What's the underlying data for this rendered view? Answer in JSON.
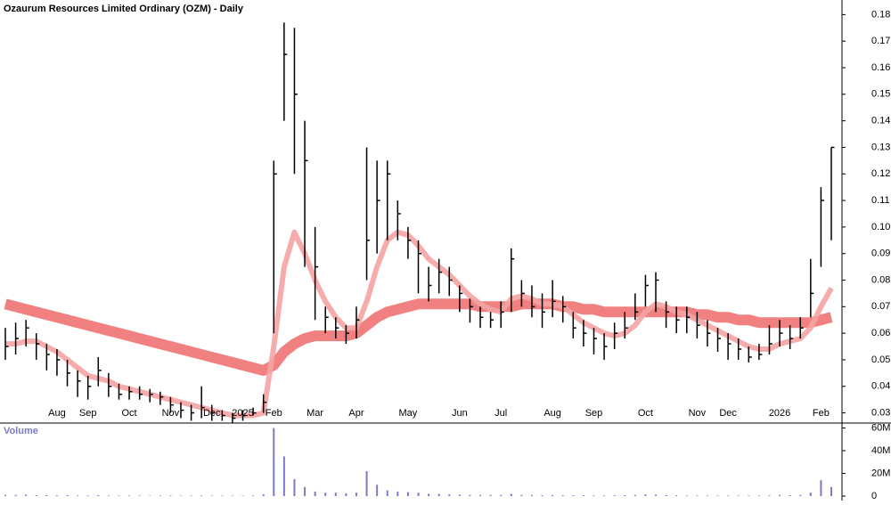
{
  "chart_data": [
    {
      "type": "candlestick",
      "title": "Ozaurum Resources Limited Ordinary (OZM) - Daily",
      "categories": [
        null,
        null,
        null,
        null,
        null,
        "Aug",
        null,
        null,
        "Sep",
        null,
        null,
        null,
        "Oct",
        null,
        null,
        null,
        "Nov",
        null,
        null,
        null,
        "Dec",
        null,
        null,
        "2025",
        null,
        null,
        "Feb",
        null,
        null,
        null,
        "Mar",
        null,
        null,
        null,
        "Apr",
        null,
        null,
        null,
        null,
        "May",
        null,
        null,
        null,
        null,
        "Jun",
        null,
        null,
        null,
        "Jul",
        null,
        null,
        null,
        null,
        "Aug",
        null,
        null,
        null,
        "Sep",
        null,
        null,
        null,
        null,
        "Oct",
        null,
        null,
        null,
        null,
        "Nov",
        null,
        null,
        "Dec",
        null,
        null,
        null,
        null,
        "2026",
        null,
        null,
        null,
        "Feb",
        null
      ],
      "high": [
        0.062,
        0.064,
        0.065,
        0.06,
        0.056,
        0.054,
        0.05,
        0.046,
        0.044,
        0.051,
        0.045,
        0.041,
        0.04,
        0.04,
        0.039,
        0.038,
        0.036,
        0.034,
        0.033,
        0.04,
        0.033,
        0.031,
        0.03,
        0.031,
        0.032,
        0.037,
        0.125,
        0.177,
        0.175,
        0.14,
        0.1,
        0.07,
        0.066,
        0.063,
        0.07,
        0.13,
        0.125,
        0.125,
        0.11,
        0.1,
        0.095,
        0.085,
        0.088,
        0.085,
        0.078,
        0.073,
        0.07,
        0.068,
        0.072,
        0.092,
        0.08,
        0.078,
        0.075,
        0.08,
        0.074,
        0.068,
        0.065,
        0.062,
        0.06,
        0.064,
        0.068,
        0.075,
        0.082,
        0.083,
        0.072,
        0.07,
        0.07,
        0.068,
        0.065,
        0.062,
        0.06,
        0.058,
        0.055,
        0.056,
        0.063,
        0.065,
        0.063,
        0.066,
        0.088,
        0.115,
        0.13
      ],
      "low": [
        0.05,
        0.052,
        0.055,
        0.05,
        0.046,
        0.044,
        0.04,
        0.036,
        0.035,
        0.04,
        0.036,
        0.035,
        0.035,
        0.035,
        0.034,
        0.033,
        0.03,
        0.028,
        0.027,
        0.028,
        0.027,
        0.027,
        0.026,
        0.027,
        0.029,
        0.03,
        0.06,
        0.14,
        0.12,
        0.085,
        0.065,
        0.06,
        0.058,
        0.056,
        0.058,
        0.08,
        0.09,
        0.095,
        0.095,
        0.088,
        0.075,
        0.072,
        0.075,
        0.074,
        0.068,
        0.064,
        0.062,
        0.062,
        0.062,
        0.068,
        0.07,
        0.066,
        0.062,
        0.066,
        0.064,
        0.058,
        0.055,
        0.052,
        0.05,
        0.054,
        0.058,
        0.065,
        0.07,
        0.068,
        0.062,
        0.06,
        0.06,
        0.058,
        0.055,
        0.053,
        0.05,
        0.05,
        0.049,
        0.05,
        0.052,
        0.055,
        0.054,
        0.058,
        0.066,
        0.085,
        0.095
      ],
      "close": [
        0.055,
        0.058,
        0.062,
        0.056,
        0.052,
        0.05,
        0.045,
        0.042,
        0.04,
        0.046,
        0.04,
        0.037,
        0.038,
        0.037,
        0.037,
        0.036,
        0.033,
        0.031,
        0.03,
        0.032,
        0.03,
        0.029,
        0.028,
        0.029,
        0.03,
        0.034,
        0.12,
        0.165,
        0.15,
        0.125,
        0.085,
        0.066,
        0.062,
        0.06,
        0.065,
        0.095,
        0.11,
        0.12,
        0.105,
        0.095,
        0.09,
        0.078,
        0.083,
        0.08,
        0.075,
        0.07,
        0.066,
        0.065,
        0.068,
        0.088,
        0.075,
        0.07,
        0.068,
        0.072,
        0.07,
        0.062,
        0.06,
        0.058,
        0.055,
        0.06,
        0.062,
        0.068,
        0.078,
        0.08,
        0.068,
        0.065,
        0.066,
        0.063,
        0.06,
        0.058,
        0.056,
        0.054,
        0.051,
        0.052,
        0.056,
        0.06,
        0.058,
        0.062,
        0.075,
        0.11,
        0.13
      ],
      "ma_short": {
        "color": "#f5a3a3",
        "values": [
          0.056,
          0.056,
          0.057,
          0.057,
          0.055,
          0.053,
          0.05,
          0.047,
          0.044,
          0.043,
          0.042,
          0.04,
          0.039,
          0.038,
          0.037,
          0.036,
          0.035,
          0.034,
          0.033,
          0.032,
          0.031,
          0.03,
          0.029,
          0.029,
          0.029,
          0.03,
          0.055,
          0.085,
          0.098,
          0.09,
          0.08,
          0.072,
          0.066,
          0.062,
          0.062,
          0.072,
          0.085,
          0.095,
          0.098,
          0.097,
          0.093,
          0.088,
          0.085,
          0.082,
          0.078,
          0.074,
          0.071,
          0.069,
          0.068,
          0.073,
          0.074,
          0.073,
          0.071,
          0.071,
          0.07,
          0.067,
          0.064,
          0.062,
          0.06,
          0.059,
          0.06,
          0.063,
          0.068,
          0.071,
          0.07,
          0.068,
          0.067,
          0.065,
          0.063,
          0.061,
          0.059,
          0.057,
          0.055,
          0.054,
          0.054,
          0.056,
          0.057,
          0.058,
          0.062,
          0.07,
          0.077
        ]
      },
      "ma_long": {
        "color": "#f07272",
        "values": [
          0.071,
          0.07,
          0.069,
          0.068,
          0.067,
          0.066,
          0.065,
          0.064,
          0.063,
          0.062,
          0.061,
          0.06,
          0.059,
          0.058,
          0.057,
          0.056,
          0.055,
          0.054,
          0.053,
          0.052,
          0.051,
          0.05,
          0.049,
          0.048,
          0.047,
          0.046,
          0.048,
          0.053,
          0.056,
          0.058,
          0.059,
          0.059,
          0.059,
          0.059,
          0.06,
          0.063,
          0.066,
          0.068,
          0.069,
          0.07,
          0.071,
          0.071,
          0.071,
          0.071,
          0.071,
          0.071,
          0.07,
          0.07,
          0.07,
          0.07,
          0.071,
          0.071,
          0.071,
          0.071,
          0.07,
          0.07,
          0.069,
          0.069,
          0.068,
          0.068,
          0.068,
          0.068,
          0.068,
          0.068,
          0.068,
          0.068,
          0.068,
          0.067,
          0.067,
          0.066,
          0.066,
          0.065,
          0.065,
          0.064,
          0.064,
          0.064,
          0.064,
          0.064,
          0.064,
          0.065,
          0.066
        ]
      },
      "color": "#000000",
      "ylim": [
        0.0265,
        0.1855
      ],
      "yticks": [
        0.03,
        0.04,
        0.05,
        0.06,
        0.07,
        0.08,
        0.09,
        {
          "value": 0.1,
          "label": "0.10"
        },
        0.11,
        0.12,
        0.13,
        0.14,
        0.15,
        0.16,
        0.17,
        0.18
      ]
    },
    {
      "type": "bar",
      "title": "Volume",
      "values": [
        1,
        1,
        1.2,
        0.8,
        0.8,
        0.7,
        0.9,
        0.6,
        0.6,
        0.8,
        0.5,
        0.5,
        0.5,
        0.5,
        0.4,
        0.5,
        0.5,
        0.4,
        0.4,
        0.6,
        0.4,
        0.4,
        0.4,
        0.4,
        0.5,
        1.5,
        60,
        35,
        15,
        8,
        4,
        3,
        3,
        2.5,
        3,
        22,
        10,
        5,
        4,
        3.5,
        3,
        2,
        2,
        1.5,
        1.2,
        1,
        1,
        1,
        1,
        2,
        1,
        1,
        0.8,
        1,
        0.8,
        0.7,
        0.7,
        0.6,
        0.6,
        0.7,
        0.8,
        1,
        1.5,
        1.2,
        0.8,
        0.7,
        0.6,
        0.6,
        0.5,
        0.5,
        0.5,
        0.5,
        0.5,
        0.5,
        0.6,
        1,
        0.8,
        1,
        3,
        14,
        8
      ],
      "color": "#7b7bc8",
      "ylim": [
        0,
        62
      ],
      "yticks": [
        0,
        {
          "value": 20,
          "label": "20M"
        },
        {
          "value": 40,
          "label": "40M"
        },
        {
          "value": 60,
          "label": "60M"
        }
      ]
    }
  ]
}
